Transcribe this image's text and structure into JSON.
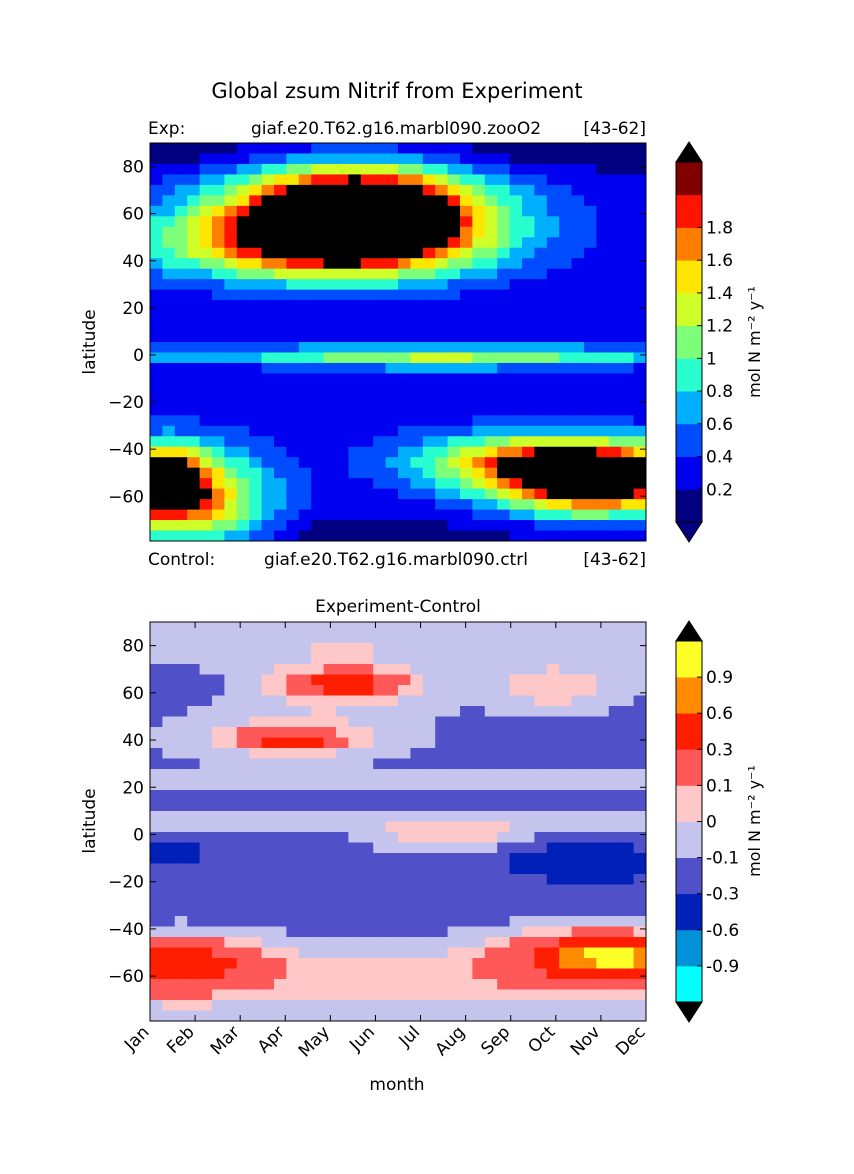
{
  "figure": {
    "title": "Global zsum Nitrif from Experiment",
    "exp_label": "Exp:",
    "exp_case": "giaf.e20.T62.g16.marbl090.zooO2",
    "exp_years": "[43-62]",
    "ctrl_label": "Control:",
    "ctrl_case": "giaf.e20.T62.g16.marbl090.ctrl",
    "ctrl_years": "[43-62]",
    "diff_title": "Experiment-Control"
  },
  "chart_data": [
    {
      "type": "heatmap",
      "title": "",
      "xlabel": "",
      "ylabel": "latitude",
      "x_ticks": [],
      "y_ticks": [
        "80",
        "60",
        "40",
        "20",
        "0",
        "−20",
        "−40",
        "−60"
      ],
      "y_tick_values": [
        80,
        60,
        40,
        20,
        0,
        -20,
        -40,
        -60
      ],
      "xlim": [
        0,
        11
      ],
      "ylim": [
        -79,
        90
      ],
      "colorbar": {
        "label": "mol N m⁻² y⁻¹",
        "tick_labels": [
          "0.2",
          "0.4",
          "0.6",
          "0.8",
          "1",
          "1.2",
          "1.4",
          "1.6",
          "1.8"
        ],
        "levels": [
          0,
          0.2,
          0.4,
          0.6,
          0.8,
          1.0,
          1.2,
          1.4,
          1.6,
          1.8,
          2.0
        ],
        "colors": [
          "#000080",
          "#0000f1",
          "#004cff",
          "#00b0ff",
          "#29ffce",
          "#7dff7a",
          "#ceff29",
          "#ffe600",
          "#ff7d00",
          "#ff1400",
          "#800000"
        ],
        "under_color": "#000080",
        "over_color": "#000000",
        "extend": "both"
      },
      "features": [
        {
          "month": 4.6,
          "lat": 60,
          "value": 2.1,
          "width": 2.4,
          "height": 20
        },
        {
          "month": 4.5,
          "lat": 56,
          "value": 1.2,
          "width": 3.5,
          "height": 20
        },
        {
          "month": 3.0,
          "lat": 46,
          "value": 0.8,
          "width": 3.6,
          "height": 14
        },
        {
          "month": 0.2,
          "lat": -54,
          "value": 2.1,
          "width": 0.9,
          "height": 14
        },
        {
          "month": 1.1,
          "lat": -62,
          "value": 1.3,
          "width": 1.6,
          "height": 22
        },
        {
          "month": 9.9,
          "lat": -54,
          "value": 2.1,
          "width": 2.2,
          "height": 14
        },
        {
          "month": 8.5,
          "lat": -45,
          "value": 1.2,
          "width": 2.8,
          "height": 12
        },
        {
          "month": 6.5,
          "lat": -1,
          "value": 0.65,
          "width": 4.0,
          "height": 6
        },
        {
          "month": 9.0,
          "lat": -76,
          "value": 0.05,
          "width": 4.5,
          "height": 10
        }
      ]
    },
    {
      "type": "heatmap",
      "title": "Experiment-Control",
      "xlabel": "month",
      "ylabel": "latitude",
      "x_ticks": [
        "Jan",
        "Feb",
        "Mar",
        "Apr",
        "May",
        "Jun",
        "Jul",
        "Aug",
        "Sep",
        "Oct",
        "Nov",
        "Dec"
      ],
      "y_ticks": [
        "80",
        "60",
        "40",
        "20",
        "0",
        "−20",
        "−40",
        "−60"
      ],
      "y_tick_values": [
        80,
        60,
        40,
        20,
        0,
        -20,
        -40,
        -60
      ],
      "xlim": [
        0,
        11
      ],
      "ylim": [
        -79,
        90
      ],
      "colorbar": {
        "label": "mol N m⁻² y⁻¹",
        "tick_labels": [
          "-0.9",
          "-0.6",
          "-0.3",
          "-0.1",
          "0",
          "0.1",
          "0.3",
          "0.6",
          "0.9"
        ],
        "levels": [
          -1.2,
          -0.9,
          -0.6,
          -0.3,
          -0.1,
          0,
          0.1,
          0.3,
          0.6,
          0.9,
          1.2
        ],
        "colors": [
          "#00ffff",
          "#0091d8",
          "#0020b8",
          "#5050c8",
          "#c4c4ec",
          "#ffc8c8",
          "#ff5858",
          "#ff1e00",
          "#ff8c00",
          "#ffff28"
        ],
        "under_color": "#000000",
        "over_color": "#000000",
        "extend": "both"
      },
      "features": [
        {
          "month": 4.3,
          "lat": 63,
          "value": 0.2,
          "width": 2.2,
          "height": 12
        },
        {
          "month": 4.3,
          "lat": 64,
          "value": 0.45,
          "width": 1.2,
          "height": 5
        },
        {
          "month": 3.0,
          "lat": 41,
          "value": 0.2,
          "width": 2.8,
          "height": 11
        },
        {
          "month": 3.1,
          "lat": 40,
          "value": 0.45,
          "width": 1.0,
          "height": 4
        },
        {
          "month": 9.0,
          "lat": 62,
          "value": 0.2,
          "width": 1.6,
          "height": 11
        },
        {
          "month": 0.7,
          "lat": -54,
          "value": 0.45,
          "width": 1.8,
          "height": 11
        },
        {
          "month": 9.9,
          "lat": -51,
          "value": 0.45,
          "width": 2.2,
          "height": 11
        },
        {
          "month": 10.3,
          "lat": -52,
          "value": 0.7,
          "width": 1.1,
          "height": 7
        },
        {
          "month": 6.7,
          "lat": -2,
          "value": 0.2,
          "width": 1.8,
          "height": 5
        },
        {
          "month": 9.7,
          "lat": -12,
          "value": -0.45,
          "width": 1.6,
          "height": 8
        },
        {
          "month": 0.2,
          "lat": -8,
          "value": -0.45,
          "width": 0.9,
          "height": 6
        }
      ]
    }
  ]
}
